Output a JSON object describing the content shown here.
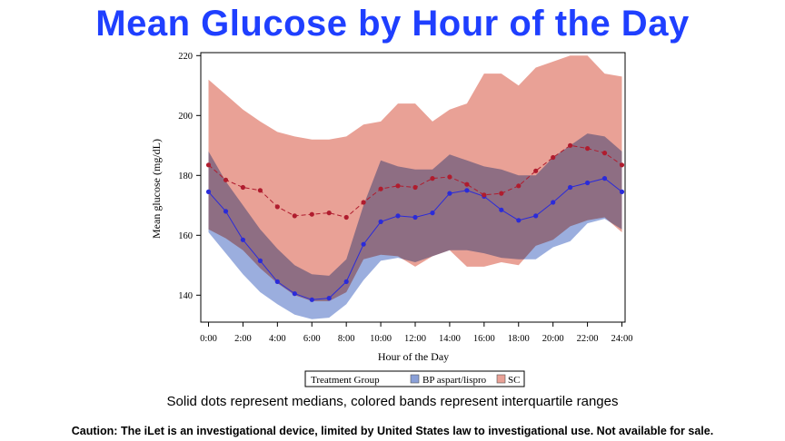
{
  "page": {
    "title": "Mean Glucose by Hour of the Day",
    "subtitle": "Solid dots represent medians, colored bands represent interquartile ranges",
    "caution": "Caution: The iLet is an investigational device, limited by United States law to investigational use. Not available for sale."
  },
  "chart_data": {
    "type": "line",
    "xlabel": "Hour of the Day",
    "ylabel": "Mean glucose (mg/dL)",
    "xlim": [
      0,
      24
    ],
    "ylim": [
      131,
      221
    ],
    "x_ticks": [
      0,
      2,
      4,
      6,
      8,
      10,
      12,
      14,
      16,
      18,
      20,
      22,
      24
    ],
    "x_tick_labels": [
      "0:00",
      "2:00",
      "4:00",
      "6:00",
      "8:00",
      "10:00",
      "12:00",
      "14:00",
      "16:00",
      "18:00",
      "20:00",
      "22:00",
      "24:00"
    ],
    "y_ticks": [
      140,
      160,
      180,
      200,
      220
    ],
    "y_tick_labels": [
      "140",
      "160",
      "180",
      "200",
      "220"
    ],
    "x": [
      0,
      1,
      2,
      3,
      4,
      5,
      6,
      7,
      8,
      9,
      10,
      11,
      12,
      13,
      14,
      15,
      16,
      17,
      18,
      19,
      20,
      21,
      22,
      23,
      24
    ],
    "legend": {
      "title": "Treatment Group",
      "placement": "bottom"
    },
    "series": [
      {
        "name": "BP aspart/lispro",
        "color": "#2b2bd9",
        "band_color": "#8aa0d8",
        "median": [
          174.5,
          168,
          158.5,
          151.5,
          144.5,
          140.5,
          138.5,
          139,
          144.5,
          157,
          164.5,
          166.5,
          166,
          167.5,
          174,
          175,
          173,
          168.5,
          165,
          166.5,
          171,
          176,
          177.5,
          179,
          174.5
        ],
        "q1": [
          161,
          154,
          147,
          141,
          137,
          133.5,
          132,
          132.5,
          137,
          145,
          151.5,
          152.5,
          151,
          153,
          155,
          155,
          154,
          152.5,
          152,
          152,
          156,
          158,
          164,
          165.5,
          162
        ],
        "q3": [
          188,
          178,
          170,
          162,
          155.5,
          150,
          147,
          146.5,
          152,
          170,
          185,
          183,
          182,
          182,
          187,
          185,
          183,
          182,
          180,
          180,
          186,
          190,
          194,
          193,
          188
        ]
      },
      {
        "name": "SC",
        "color": "#b01c2e",
        "band_color": "#e9a196",
        "median": [
          183.5,
          178.5,
          176,
          175,
          169.5,
          166.5,
          167,
          167.5,
          166,
          171,
          175.5,
          176.5,
          176,
          179,
          179.5,
          177,
          173.5,
          174,
          176.5,
          181.5,
          186,
          190,
          189,
          187.5,
          183.5
        ],
        "q1": [
          162,
          159,
          155,
          149,
          144,
          140,
          138,
          138,
          141,
          152,
          153.5,
          153,
          149.5,
          153,
          155,
          149.5,
          149.5,
          151,
          150,
          156.5,
          158.5,
          163,
          165,
          166,
          161
        ],
        "q3": [
          212,
          207,
          202,
          198,
          194.5,
          193,
          192,
          192,
          193,
          197,
          198,
          204,
          204,
          198,
          202,
          204,
          214,
          214,
          210,
          216,
          218,
          220,
          220,
          214,
          213
        ]
      }
    ]
  }
}
